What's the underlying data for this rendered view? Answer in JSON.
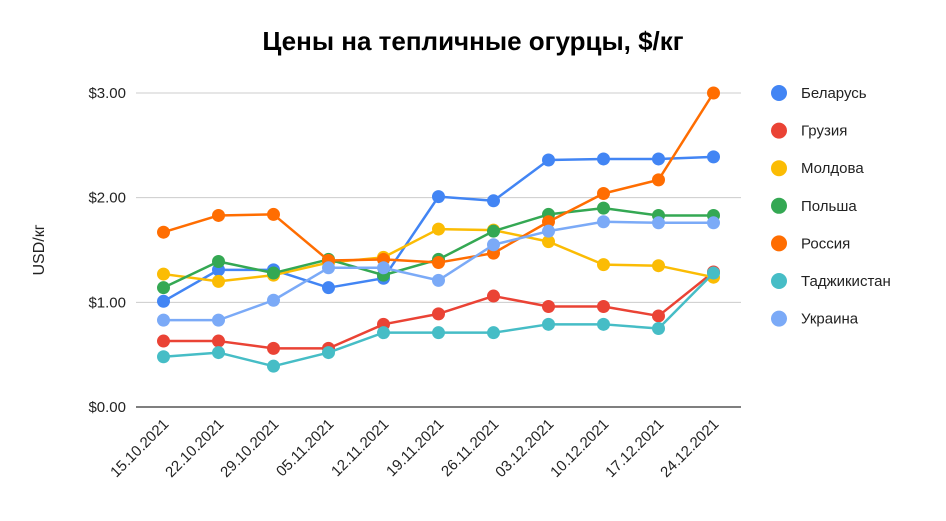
{
  "chart_data": {
    "type": "line",
    "title": "Цены на тепличные огурцы, $/кг",
    "xlabel": "",
    "ylabel": "USD/кг",
    "ylim": [
      0,
      3
    ],
    "yticks": [
      0,
      1,
      2,
      3
    ],
    "ytick_labels": [
      "$0.00",
      "$1.00",
      "$2.00",
      "$3.00"
    ],
    "grid": true,
    "legend_position": "right",
    "categories": [
      "15.10.2021",
      "22.10.2021",
      "29.10.2021",
      "05.11.2021",
      "12.11.2021",
      "19.11.2021",
      "26.11.2021",
      "03.12.2021",
      "10.12.2021",
      "17.12.2021",
      "24.12.2021"
    ],
    "series": [
      {
        "name": "Беларусь",
        "color": "#4285f4",
        "values": [
          1.01,
          1.31,
          1.31,
          1.14,
          1.23,
          2.01,
          1.97,
          2.36,
          2.37,
          2.37,
          2.39
        ]
      },
      {
        "name": "Грузия",
        "color": "#ea4335",
        "values": [
          0.63,
          0.63,
          0.56,
          0.56,
          0.79,
          0.89,
          1.06,
          0.96,
          0.96,
          0.87,
          1.29
        ]
      },
      {
        "name": "Молдова",
        "color": "#fbbc04",
        "values": [
          1.27,
          1.2,
          1.26,
          1.38,
          1.43,
          1.7,
          1.69,
          1.58,
          1.36,
          1.35,
          1.24
        ]
      },
      {
        "name": "Польша",
        "color": "#34a853",
        "values": [
          1.14,
          1.39,
          1.28,
          1.41,
          1.26,
          1.41,
          1.68,
          1.84,
          1.9,
          1.83,
          1.83
        ]
      },
      {
        "name": "Россия",
        "color": "#ff6d01",
        "values": [
          1.67,
          1.83,
          1.84,
          1.4,
          1.41,
          1.38,
          1.47,
          1.77,
          2.04,
          2.17,
          3.0
        ]
      },
      {
        "name": "Таджикистан",
        "color": "#46bdc6",
        "values": [
          0.48,
          0.52,
          0.39,
          0.52,
          0.71,
          0.71,
          0.71,
          0.79,
          0.79,
          0.75,
          1.28
        ]
      },
      {
        "name": "Украина",
        "color": "#7baaf7",
        "values": [
          0.83,
          0.83,
          1.02,
          1.33,
          1.33,
          1.21,
          1.55,
          1.68,
          1.77,
          1.76,
          1.76
        ]
      }
    ]
  }
}
